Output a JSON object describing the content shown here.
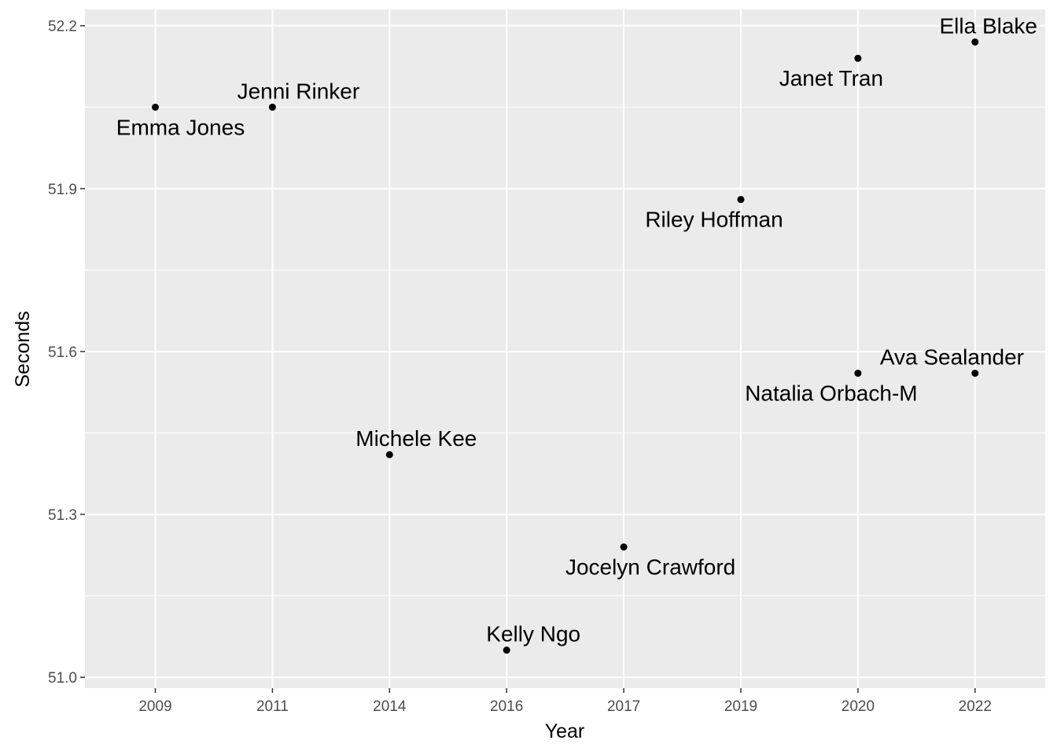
{
  "chart_data": {
    "type": "scatter",
    "title": "",
    "xlabel": "Year",
    "ylabel": "Seconds",
    "x_axis_kind": "categorical",
    "categories": [
      "2009",
      "2011",
      "2014",
      "2016",
      "2017",
      "2019",
      "2020",
      "2022"
    ],
    "ylim": [
      50.98,
      52.23
    ],
    "y_ticks": [
      "51.0",
      "51.3",
      "51.6",
      "51.9",
      "52.2"
    ],
    "grid": true,
    "legend": "none",
    "colors": {
      "panel_background": "#ebebeb",
      "grid_line": "#ffffff",
      "point": "#000000",
      "tick_label": "#4d4d4d",
      "tick_mark": "#333333"
    },
    "points": [
      {
        "x": "2009",
        "y": 52.05,
        "label": "Emma Jones",
        "label_side": "below"
      },
      {
        "x": "2011",
        "y": 52.05,
        "label": "Jenni Rinker",
        "label_side": "above"
      },
      {
        "x": "2014",
        "y": 51.41,
        "label": "Michele Kee",
        "label_side": "above"
      },
      {
        "x": "2016",
        "y": 51.05,
        "label": "Kelly Ngo",
        "label_side": "above"
      },
      {
        "x": "2017",
        "y": 51.24,
        "label": "Jocelyn Crawford",
        "label_side": "below"
      },
      {
        "x": "2019",
        "y": 51.88,
        "label": "Riley Hoffman",
        "label_side": "below"
      },
      {
        "x": "2020",
        "y": 52.14,
        "label": "Janet Tran",
        "label_side": "below"
      },
      {
        "x": "2020",
        "y": 51.56,
        "label": "Natalia Orbach-M",
        "label_side": "below"
      },
      {
        "x": "2022",
        "y": 52.17,
        "label": "Ella Blake",
        "label_side": "above"
      },
      {
        "x": "2022",
        "y": 51.56,
        "label": "Ava Sealander",
        "label_side": "above"
      }
    ]
  }
}
